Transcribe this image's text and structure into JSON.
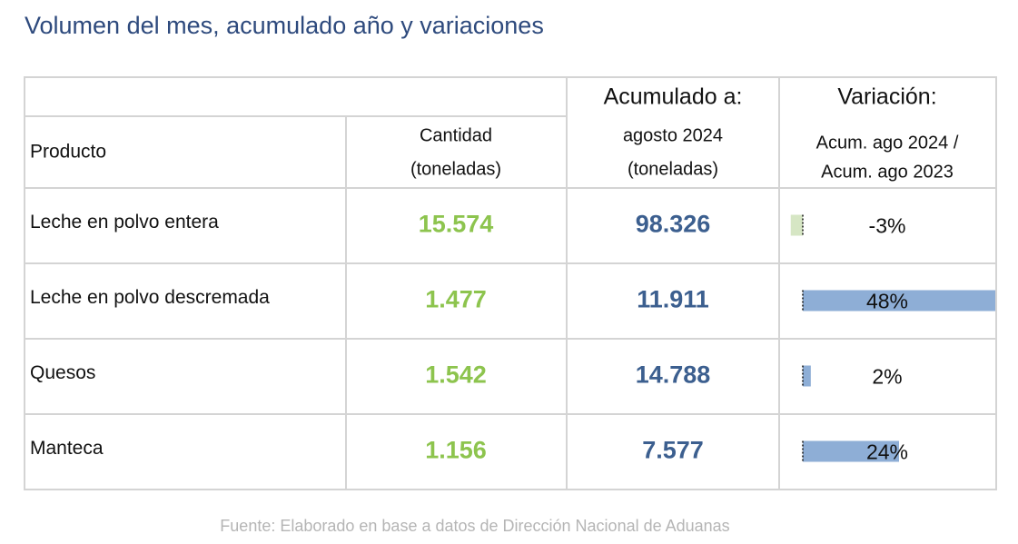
{
  "title": "Volumen del mes, acumulado año y variaciones",
  "header": {
    "producto": "Producto",
    "cantidad": [
      "Cantidad",
      "(toneladas)"
    ],
    "acumulado": [
      "Acumulado a:",
      "agosto 2024",
      "(toneladas)"
    ],
    "variacion": [
      "Variación:",
      "Acum. ago 2024 /",
      "Acum. ago 2023"
    ]
  },
  "rows": [
    {
      "producto": "Leche en polvo entera",
      "cantidad": "15.574",
      "acumulado": "98.326",
      "variacion": {
        "value": -3,
        "label": "-3%"
      }
    },
    {
      "producto": "Leche en polvo descremada",
      "cantidad": "1.477",
      "acumulado": "11.911",
      "variacion": {
        "value": 48,
        "label": "48%"
      }
    },
    {
      "producto": "Quesos",
      "cantidad": "1.542",
      "acumulado": "14.788",
      "variacion": {
        "value": 2,
        "label": "2%"
      }
    },
    {
      "producto": "Manteca",
      "cantidad": "1.156",
      "acumulado": "7.577",
      "variacion": {
        "value": 24,
        "label": "24%"
      }
    }
  ],
  "source": "Fuente: Elaborado en base a datos de Dirección Nacional de Aduanas"
}
